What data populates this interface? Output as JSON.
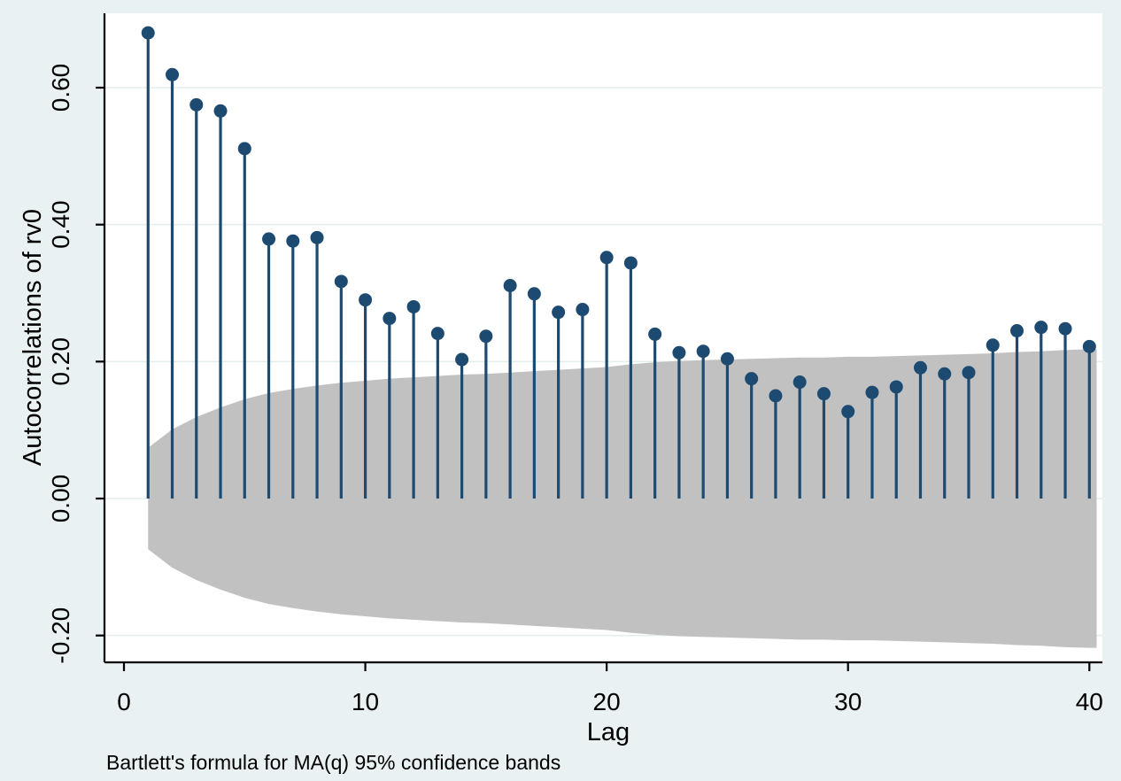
{
  "figure": {
    "background_color": "#e9f1f2",
    "plot_background_color": "#ffffff",
    "axis_color": "#000000",
    "gridline_color": "#e3edee"
  },
  "chart_data": {
    "type": "stem",
    "title": "",
    "xlabel": "Lag",
    "ylabel": "Autocorrelations of rv0",
    "note": "Bartlett's formula for MA(q) 95% confidence bands",
    "legend": "none",
    "grid": "on",
    "stem_color": "#1d4a70",
    "band_color": "#c1c1c1",
    "xlim": [
      -0.807,
      40.54
    ],
    "ylim": [
      -0.2392,
      0.7086
    ],
    "x_tick_values": [
      0,
      10,
      20,
      30,
      40
    ],
    "x_tick_labels": [
      "0",
      "10",
      "20",
      "30",
      "40"
    ],
    "y_tick_values": [
      0.6,
      0.4,
      0.2,
      0.0,
      -0.2
    ],
    "y_tick_labels": [
      "0.60",
      "0.40",
      "0.20",
      "0.00",
      "-0.20"
    ],
    "lags": [
      1,
      2,
      3,
      4,
      5,
      6,
      7,
      8,
      9,
      10,
      11,
      12,
      13,
      14,
      15,
      16,
      17,
      18,
      19,
      20,
      21,
      22,
      23,
      24,
      25,
      26,
      27,
      28,
      29,
      30,
      31,
      32,
      33,
      34,
      35,
      36,
      37,
      38,
      39,
      40
    ],
    "acf": [
      0.68,
      0.619,
      0.575,
      0.566,
      0.511,
      0.379,
      0.376,
      0.381,
      0.317,
      0.29,
      0.263,
      0.28,
      0.241,
      0.203,
      0.237,
      0.311,
      0.299,
      0.272,
      0.276,
      0.352,
      0.344,
      0.24,
      0.213,
      0.215,
      0.204,
      0.175,
      0.15,
      0.17,
      0.153,
      0.127,
      0.155,
      0.163,
      0.191,
      0.182,
      0.184,
      0.224,
      0.245,
      0.25,
      0.248,
      0.222
    ],
    "band_halfwidth": [
      0.074,
      0.101,
      0.119,
      0.133,
      0.145,
      0.154,
      0.16,
      0.165,
      0.169,
      0.172,
      0.175,
      0.177,
      0.179,
      0.181,
      0.182,
      0.184,
      0.186,
      0.188,
      0.19,
      0.192,
      0.196,
      0.199,
      0.201,
      0.202,
      0.203,
      0.204,
      0.205,
      0.206,
      0.206,
      0.207,
      0.207,
      0.208,
      0.209,
      0.21,
      0.211,
      0.212,
      0.214,
      0.215,
      0.217,
      0.218
    ]
  }
}
